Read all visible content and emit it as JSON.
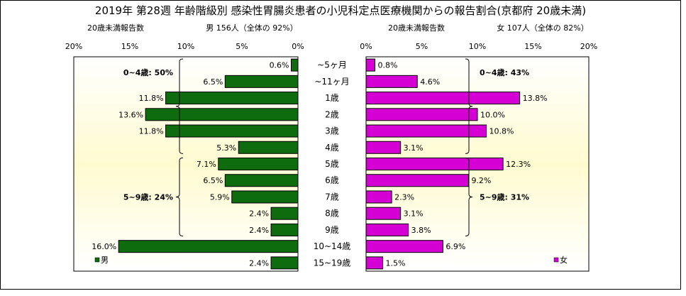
{
  "chart_data": {
    "type": "bar",
    "title": "2019年 第28週 年齢階級別 感染性胃腸炎患者の小児科定点医療機関からの報告割合(京都府 20歳未満)",
    "categories": [
      "~5ヶ月",
      "~11ヶ月",
      "1歳",
      "2歳",
      "3歳",
      "4歳",
      "5歳",
      "6歳",
      "7歳",
      "8歳",
      "9歳",
      "10~14歳",
      "15~19歳"
    ],
    "x_ticks": [
      "20%",
      "15%",
      "10%",
      "5%",
      "0%"
    ],
    "xlim": [
      0,
      20
    ],
    "grid": false,
    "male": {
      "header_left": "20歳未満報告数",
      "header_right": "男 156人（全体の 92%）",
      "legend": "男",
      "color": "#0e6b0e",
      "values": [
        0.6,
        6.5,
        11.8,
        13.6,
        11.8,
        5.3,
        7.1,
        6.5,
        5.9,
        2.4,
        2.4,
        16.0,
        2.4
      ],
      "labels": [
        "0.6%",
        "6.5%",
        "11.8%",
        "13.6%",
        "11.8%",
        "5.3%",
        "7.1%",
        "6.5%",
        "5.9%",
        "2.4%",
        "2.4%",
        "16.0%",
        "2.4%"
      ],
      "groups": [
        {
          "label": "0~4歳: 50%",
          "from": 0,
          "to": 5
        },
        {
          "label": "5~9歳: 24%",
          "from": 6,
          "to": 10
        }
      ]
    },
    "female": {
      "header_left": "20歳未満報告数",
      "header_right": "女 107人（全体の 82%）",
      "legend": "女",
      "color": "#d400d4",
      "values": [
        0.8,
        4.6,
        13.8,
        10.0,
        10.8,
        3.1,
        12.3,
        9.2,
        2.3,
        3.1,
        3.8,
        6.9,
        1.5
      ],
      "labels": [
        "0.8%",
        "4.6%",
        "13.8%",
        "10.0%",
        "10.8%",
        "3.1%",
        "12.3%",
        "9.2%",
        "2.3%",
        "3.1%",
        "3.8%",
        "6.9%",
        "1.5%"
      ],
      "groups": [
        {
          "label": "0~4歳: 43%",
          "from": 0,
          "to": 5
        },
        {
          "label": "5~9歳: 31%",
          "from": 6,
          "to": 10
        }
      ]
    }
  }
}
